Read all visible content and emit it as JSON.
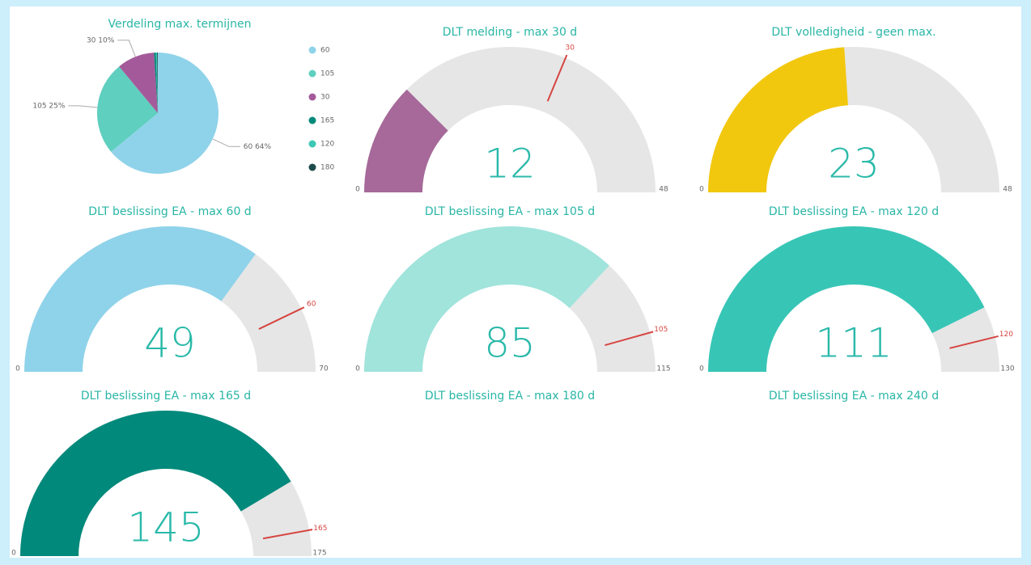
{
  "chart_data": [
    {
      "type": "pie",
      "title": "Verdeling max. termijnen",
      "categories": [
        "60",
        "105",
        "30",
        "165",
        "120",
        "180"
      ],
      "values": [
        64,
        25,
        10,
        0.5,
        0.3,
        0.2
      ],
      "value_labels": [
        "60 64%",
        "105 25%",
        "30 10%",
        null,
        null,
        null
      ],
      "colors": [
        "#8fd3ea",
        "#5fcfbf",
        "#a45a9a",
        "#01897b",
        "#3cc8b4",
        "#1d4b4b"
      ]
    },
    {
      "type": "gauge",
      "title": "DLT melding - max 30 d",
      "value": 12,
      "min": 0,
      "max": 48,
      "target": 30,
      "color": "#a66999"
    },
    {
      "type": "gauge",
      "title": "DLT volledigheid - geen max.",
      "value": 23,
      "min": 0,
      "max": 48,
      "color": "#f2c80f"
    },
    {
      "type": "gauge",
      "title": "DLT beslissing EA - max 60 d",
      "value": 49,
      "min": 0,
      "max": 70,
      "target": 60,
      "color": "#8fd3ea"
    },
    {
      "type": "gauge",
      "title": "DLT beslissing EA - max 105 d",
      "value": 85,
      "min": 0,
      "max": 115,
      "target": 105,
      "color": "#a0e4dc"
    },
    {
      "type": "gauge",
      "title": "DLT beslissing EA - max 120 d",
      "value": 111,
      "min": 0,
      "max": 130,
      "target": 120,
      "color": "#37c6b6"
    },
    {
      "type": "gauge",
      "title": "DLT beslissing EA - max 165 d",
      "value": 145,
      "min": 0,
      "max": 175,
      "target": 165,
      "color": "#01897b"
    },
    {
      "type": "gauge",
      "title": "DLT beslissing EA - max 180 d"
    },
    {
      "type": "gauge",
      "title": "DLT beslissing EA - max 240 d"
    }
  ]
}
